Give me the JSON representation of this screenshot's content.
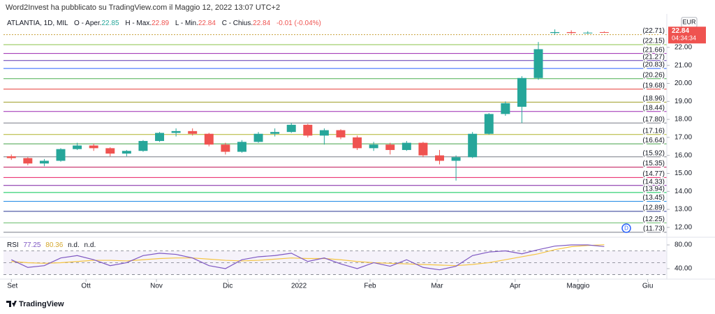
{
  "chart_data": {
    "type": "candlestick",
    "title": "Word2Invest ha pubblicato su TradingView.com il Maggio 12, 2022 13:07 UTC+2",
    "symbol": "ATLANTIA, 1D, MIL",
    "ohlc_labels": [
      "O - Aper.",
      "H - Max.",
      "L - Min.",
      "C - Chius."
    ],
    "change": "-0.01 (-0.04%)",
    "currency": "EUR",
    "countdown": "04:34:34",
    "event_marker": "D",
    "brand": "TradingView",
    "colors": {
      "up": "#26a69a",
      "down": "#ef5350"
    },
    "candles": {
      "open": [
        15.95,
        15.85,
        15.55,
        15.7,
        16.35,
        16.55,
        16.4,
        16.1,
        16.25,
        16.8,
        17.25,
        17.35,
        17.2,
        16.6,
        16.2,
        16.75,
        17.2,
        17.3,
        17.7,
        17.1,
        17.4,
        17.0,
        16.4,
        16.6,
        16.3,
        16.7,
        16.0,
        15.7,
        15.9,
        17.2,
        18.3,
        18.7,
        20.3,
        22.8,
        22.85,
        22.8,
        22.85
      ],
      "high": [
        16.05,
        15.9,
        15.8,
        16.4,
        16.7,
        16.65,
        16.45,
        16.3,
        16.85,
        17.3,
        17.5,
        17.5,
        17.25,
        16.7,
        16.85,
        17.3,
        17.5,
        17.8,
        17.75,
        17.5,
        17.45,
        17.1,
        16.75,
        16.7,
        16.8,
        16.75,
        16.3,
        16.0,
        17.3,
        18.35,
        19.0,
        20.4,
        22.3,
        23.0,
        22.95,
        22.9,
        22.89
      ],
      "low": [
        15.75,
        15.45,
        15.4,
        15.65,
        16.3,
        16.25,
        15.95,
        15.95,
        16.2,
        16.75,
        17.05,
        17.1,
        16.5,
        16.05,
        16.15,
        16.7,
        17.05,
        17.25,
        17.0,
        16.6,
        16.9,
        16.3,
        16.25,
        16.05,
        16.25,
        15.9,
        15.5,
        14.6,
        15.85,
        17.15,
        18.2,
        17.8,
        20.2,
        22.7,
        22.75,
        22.75,
        22.84
      ],
      "close": [
        15.85,
        15.55,
        15.7,
        16.35,
        16.55,
        16.4,
        16.1,
        16.25,
        16.8,
        17.25,
        17.35,
        17.2,
        16.6,
        16.2,
        16.75,
        17.2,
        17.3,
        17.7,
        17.1,
        17.4,
        17.0,
        16.4,
        16.6,
        16.3,
        16.7,
        16.0,
        15.7,
        15.9,
        17.2,
        18.3,
        18.9,
        20.3,
        21.9,
        22.85,
        22.8,
        22.82,
        22.84
      ]
    },
    "xlim": [
      -0.35,
      39.8
    ],
    "xticks": [
      {
        "value": 0,
        "label": "Set"
      },
      {
        "value": 4.53,
        "label": "Ott"
      },
      {
        "value": 8.81,
        "label": "Nov"
      },
      {
        "value": 13.14,
        "label": "Dic"
      },
      {
        "value": 17.46,
        "label": "2022"
      },
      {
        "value": 21.78,
        "label": "Feb"
      },
      {
        "value": 25.85,
        "label": "Mar"
      },
      {
        "value": 30.59,
        "label": "Apr"
      },
      {
        "value": 34.41,
        "label": "Maggio"
      },
      {
        "value": 38.64,
        "label": "Giu"
      }
    ],
    "ylim": [
      11.53,
      23.78
    ],
    "yticks": [
      {
        "value": 12,
        "label": "12.00"
      },
      {
        "value": 13,
        "label": "13.00"
      },
      {
        "value": 14,
        "label": "14.00"
      },
      {
        "value": 15,
        "label": "15.00"
      },
      {
        "value": 16,
        "label": "16.00"
      },
      {
        "value": 17,
        "label": "17.00"
      },
      {
        "value": 18,
        "label": "18.00"
      },
      {
        "value": 19,
        "label": "19.00"
      },
      {
        "value": 20,
        "label": "20.00"
      },
      {
        "value": 21,
        "label": "21.00"
      },
      {
        "value": 22,
        "label": "22.00"
      }
    ],
    "levels": {
      "values": [
        22.71,
        22.15,
        21.66,
        21.27,
        20.83,
        20.26,
        19.68,
        18.96,
        18.44,
        17.8,
        17.16,
        16.64,
        15.92,
        15.35,
        14.77,
        14.33,
        13.94,
        13.45,
        12.89,
        12.25,
        11.73
      ],
      "value_labels": [
        "(22.71)",
        "(22.15)",
        "(21.66)",
        "(21.27)",
        "(20.83)",
        "(20.26)",
        "(19.68)",
        "(18.96)",
        "(18.44)",
        "(17.80)",
        "(17.16)",
        "(16.64)",
        "(15.92)",
        "(15.35)",
        "(14.77)",
        "(14.33)",
        "(13.94)",
        "(13.45)",
        "(12.89)",
        "(12.25)",
        "(11.73)"
      ],
      "colors": [
        "#c8a13a",
        "#8bc34a",
        "#9c27b0",
        "#5e35b1",
        "#2962ff",
        "#4caf50",
        "#e53935",
        "#9e9d24",
        "#9c27b0",
        "#787b86",
        "#afb42b",
        "#43a047",
        "#787b86",
        "#c2185b",
        "#e91e63",
        "#7b1fa2",
        "#00c853",
        "#1e88e5",
        "#283593",
        "#66bb6a",
        "#787b86"
      ]
    },
    "rsi": {
      "name": "RSI",
      "not_available": [
        "n.d.",
        "n.d."
      ],
      "color": "#7e57c2",
      "ma_color": "#f5c542",
      "values": [
        55,
        42,
        45,
        58,
        62,
        55,
        45,
        50,
        62,
        66,
        64,
        58,
        45,
        40,
        55,
        60,
        62,
        66,
        52,
        58,
        48,
        40,
        50,
        44,
        55,
        42,
        38,
        44,
        62,
        68,
        70,
        65,
        72,
        78,
        80,
        80,
        77.25
      ],
      "ma_values": [
        52,
        50,
        49,
        50,
        52,
        54,
        54,
        53,
        55,
        57,
        58,
        58,
        56,
        54,
        53,
        54,
        56,
        58,
        57,
        57,
        55,
        52,
        50,
        49,
        48,
        47,
        46,
        45,
        47,
        50,
        55,
        60,
        65,
        72,
        77,
        79,
        80.36
      ],
      "bands": [
        30,
        50,
        70
      ],
      "ylim": [
        27,
        89.4
      ],
      "yticks": [
        {
          "value": 40,
          "label": "40.00"
        },
        {
          "value": 80,
          "label": "80.00"
        }
      ]
    }
  }
}
